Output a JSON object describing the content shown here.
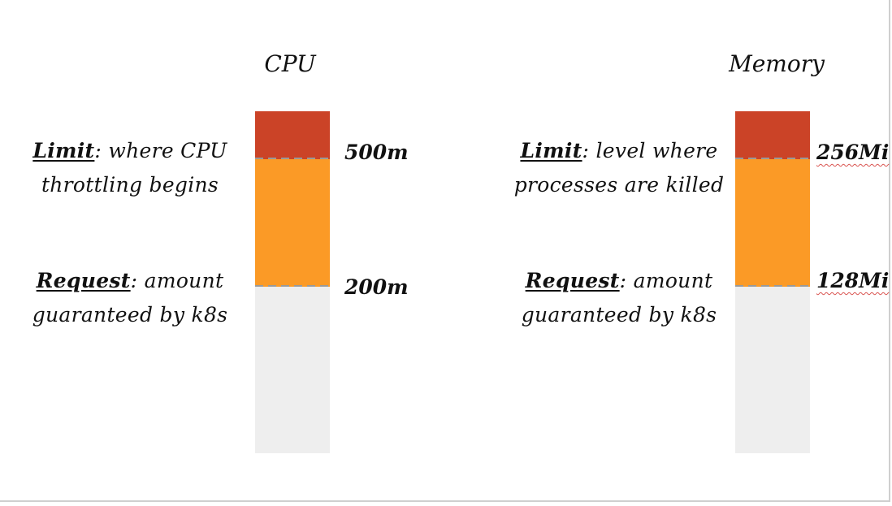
{
  "cpu": {
    "title": "CPU",
    "limit": {
      "key": "Limit",
      "text": ": where CPU throttling begins",
      "value": "500m"
    },
    "request": {
      "key": "Request",
      "text": ": amount guaranteed by k8s",
      "value": "200m"
    }
  },
  "memory": {
    "title": "Memory",
    "limit": {
      "key": "Limit",
      "text": ": level where processes are killed",
      "value": "256Mi"
    },
    "request": {
      "key": "Request",
      "text": ": amount guaranteed by k8s",
      "value": "128Mi"
    }
  },
  "colors": {
    "limit": "#cb4327",
    "request": "#fb9a26",
    "free": "#eeeeee",
    "threshold_line": "#9a9a9a"
  }
}
